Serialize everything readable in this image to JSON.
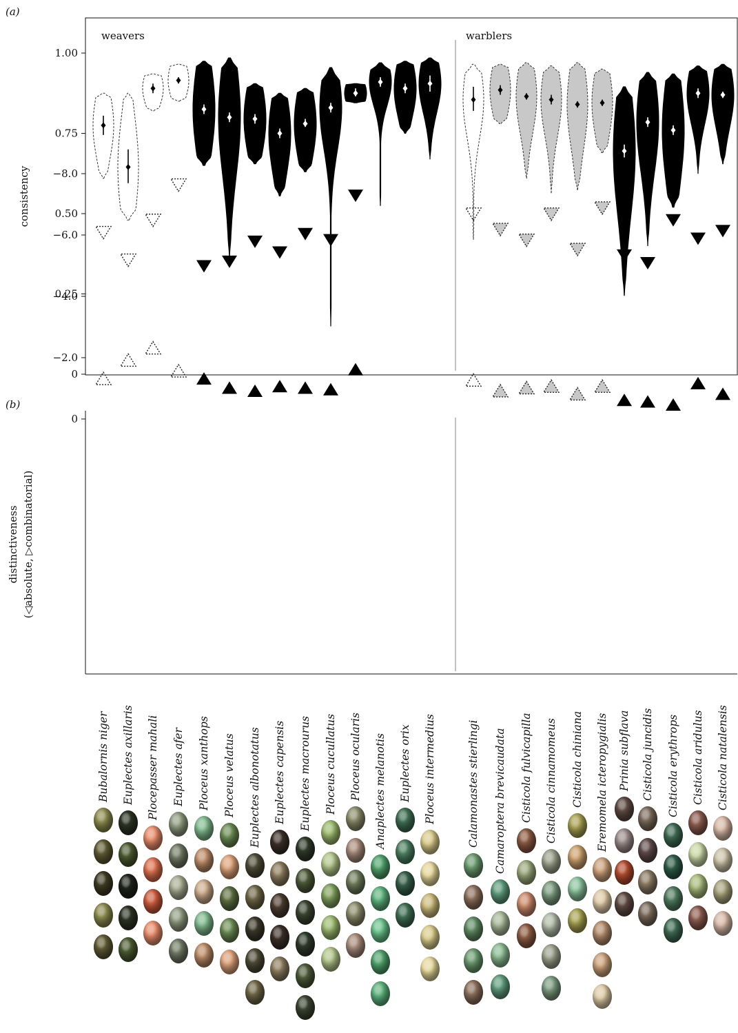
{
  "chart_data": [
    {
      "panel": "(a)",
      "type": "violin",
      "ylabel": "consistency",
      "ylim": [
        0,
        1.1
      ],
      "yticks": [
        "0",
        "0.25",
        "0.50",
        "0.75",
        "1.00"
      ],
      "groups": [
        "weavers",
        "warblers"
      ],
      "series": [
        {
          "species": "Bubalornis niger",
          "group": "weavers",
          "style": "dashed",
          "mean": 0.775,
          "err": [
            0.745,
            0.805
          ],
          "range": [
            0.61,
            0.875
          ]
        },
        {
          "species": "Euplectes axillaris",
          "group": "weavers",
          "style": "dashed",
          "mean": 0.645,
          "err": [
            0.595,
            0.7
          ],
          "range": [
            0.48,
            0.875
          ]
        },
        {
          "species": "Plocepasser mahali",
          "group": "weavers",
          "style": "dashed",
          "mean": 0.89,
          "err": [
            0.875,
            0.905
          ],
          "range": [
            0.82,
            0.935
          ]
        },
        {
          "species": "Euplectes afer",
          "group": "weavers",
          "style": "dashed",
          "mean": 0.915,
          "err": [
            0.905,
            0.925
          ],
          "range": [
            0.85,
            0.965
          ]
        },
        {
          "species": "Ploceus xanthops",
          "group": "weavers",
          "style": "black",
          "mean": 0.825,
          "err": [
            0.81,
            0.84
          ],
          "range": [
            0.65,
            0.975
          ]
        },
        {
          "species": "Ploceus velatus",
          "group": "weavers",
          "style": "black",
          "mean": 0.8,
          "err": [
            0.785,
            0.815
          ],
          "range": [
            0.36,
            0.985
          ]
        },
        {
          "species": "Euplectes albonotatus",
          "group": "weavers",
          "style": "black",
          "mean": 0.795,
          "err": [
            0.78,
            0.81
          ],
          "range": [
            0.655,
            0.905
          ]
        },
        {
          "species": "Euplectes capensis",
          "group": "weavers",
          "style": "black",
          "mean": 0.75,
          "err": [
            0.735,
            0.765
          ],
          "range": [
            0.555,
            0.875
          ]
        },
        {
          "species": "Euplectes macrourus",
          "group": "weavers",
          "style": "black",
          "mean": 0.78,
          "err": [
            0.77,
            0.795
          ],
          "range": [
            0.63,
            0.89
          ]
        },
        {
          "species": "Ploceus cucullatus",
          "group": "weavers",
          "style": "black",
          "mean": 0.83,
          "err": [
            0.815,
            0.845
          ],
          "range": [
            0.15,
            0.955
          ]
        },
        {
          "species": "Ploceus ocularis",
          "group": "weavers",
          "style": "black",
          "mean": 0.875,
          "err": [
            0.865,
            0.89
          ],
          "range": [
            0.845,
            0.905
          ]
        },
        {
          "species": "Anaplectes melanotis",
          "group": "weavers",
          "style": "black",
          "mean": 0.91,
          "err": [
            0.895,
            0.925
          ],
          "range": [
            0.525,
            0.97
          ]
        },
        {
          "species": "Euplectes orix",
          "group": "weavers",
          "style": "black",
          "mean": 0.89,
          "err": [
            0.875,
            0.905
          ],
          "range": [
            0.75,
            0.975
          ]
        },
        {
          "species": "Ploceus intermedius",
          "group": "weavers",
          "style": "black",
          "mean": 0.905,
          "err": [
            0.88,
            0.93
          ],
          "range": [
            0.67,
            0.985
          ]
        },
        {
          "species": "Calamonastes stierlingi",
          "group": "warblers",
          "style": "dashed",
          "mean": 0.855,
          "err": [
            0.82,
            0.895
          ],
          "range": [
            0.42,
            0.965
          ]
        },
        {
          "species": "Camaroptera brevicaudata",
          "group": "warblers",
          "style": "grey",
          "mean": 0.885,
          "err": [
            0.87,
            0.9
          ],
          "range": [
            0.78,
            0.965
          ]
        },
        {
          "species": "Cisticola fulvicapilla",
          "group": "warblers",
          "style": "grey",
          "mean": 0.865,
          "err": [
            0.855,
            0.875
          ],
          "range": [
            0.61,
            0.97
          ]
        },
        {
          "species": "Cisticola cinnamomeus",
          "group": "warblers",
          "style": "grey",
          "mean": 0.855,
          "err": [
            0.84,
            0.87
          ],
          "range": [
            0.565,
            0.96
          ]
        },
        {
          "species": "Cisticola chiniana",
          "group": "warblers",
          "style": "grey",
          "mean": 0.84,
          "err": [
            0.83,
            0.85
          ],
          "range": [
            0.575,
            0.97
          ]
        },
        {
          "species": "Eremomela icteropygialis",
          "group": "warblers",
          "style": "grey",
          "mean": 0.845,
          "err": [
            0.835,
            0.855
          ],
          "range": [
            0.69,
            0.95
          ]
        },
        {
          "species": "Prinia subflava",
          "group": "warblers",
          "style": "black",
          "mean": 0.695,
          "err": [
            0.675,
            0.715
          ],
          "range": [
            0.245,
            0.895
          ]
        },
        {
          "species": "Cisticola juncidis",
          "group": "warblers",
          "style": "black",
          "mean": 0.785,
          "err": [
            0.77,
            0.8
          ],
          "range": [
            0.4,
            0.94
          ]
        },
        {
          "species": "Cisticola erythrops",
          "group": "warblers",
          "style": "black",
          "mean": 0.76,
          "err": [
            0.745,
            0.775
          ],
          "range": [
            0.52,
            0.935
          ]
        },
        {
          "species": "Cisticola aridulus",
          "group": "warblers",
          "style": "black",
          "mean": 0.875,
          "err": [
            0.86,
            0.89
          ],
          "range": [
            0.625,
            0.96
          ]
        },
        {
          "species": "Cisticola natalensis",
          "group": "warblers",
          "style": "black",
          "mean": 0.87,
          "err": [
            0.86,
            0.88
          ],
          "range": [
            0.655,
            0.965
          ]
        }
      ]
    },
    {
      "panel": "(b)",
      "type": "scatter",
      "ylabel": "distinctiveness",
      "ylabel2": "(◁absolute, ▷combinatorial)",
      "ylim": [
        -8.2,
        0.2
      ],
      "yticks": [
        "0",
        "−2.0",
        "−4.0",
        "−6.0",
        "−8.0"
      ],
      "series": [
        {
          "species": "Bubalornis niger",
          "style": "dashed",
          "combinatorial": -1.3,
          "absolute": -6.1
        },
        {
          "species": "Euplectes axillaris",
          "style": "dashed",
          "combinatorial": -1.9,
          "absolute": -5.2
        },
        {
          "species": "Plocepasser mahali",
          "style": "dashed",
          "combinatorial": -2.3,
          "absolute": -6.5
        },
        {
          "species": "Euplectes afer",
          "style": "dashed",
          "combinatorial": -1.55,
          "absolute": -7.65
        },
        {
          "species": "Ploceus xanthops",
          "style": "black",
          "combinatorial": -1.3,
          "absolute": -5.0
        },
        {
          "species": "Ploceus velatus",
          "style": "black",
          "combinatorial": -1.0,
          "absolute": -5.15
        },
        {
          "species": "Euplectes albonotatus",
          "style": "black",
          "combinatorial": -0.9,
          "absolute": -5.8
        },
        {
          "species": "Euplectes capensis",
          "style": "black",
          "combinatorial": -1.05,
          "absolute": -5.45
        },
        {
          "species": "Euplectes macrourus",
          "style": "black",
          "combinatorial": -1.0,
          "absolute": -6.05
        },
        {
          "species": "Ploceus cucullatus",
          "style": "black",
          "combinatorial": -0.95,
          "absolute": -5.85
        },
        {
          "species": "Ploceus ocularis",
          "style": "black",
          "combinatorial": -1.6,
          "absolute": -7.3
        },
        {
          "species": "Calamonastes stierlingi",
          "style": "dashed",
          "combinatorial": -1.25,
          "absolute": -6.7
        },
        {
          "species": "Camaroptera brevicaudata",
          "style": "grey",
          "combinatorial": -0.9,
          "absolute": -6.2
        },
        {
          "species": "Cisticola fulvicapilla",
          "style": "grey",
          "combinatorial": -1.0,
          "absolute": -5.85
        },
        {
          "species": "Cisticola cinnamomeus",
          "style": "grey",
          "combinatorial": -1.05,
          "absolute": -6.7
        },
        {
          "species": "Cisticola chiniana",
          "style": "grey",
          "combinatorial": -0.8,
          "absolute": -5.55
        },
        {
          "species": "Eremomela icteropygialis",
          "style": "grey",
          "combinatorial": -1.05,
          "absolute": -6.9
        },
        {
          "species": "Prinia subflava",
          "style": "black",
          "combinatorial": -0.6,
          "absolute": -5.35
        },
        {
          "species": "Cisticola juncidis",
          "style": "black",
          "combinatorial": -0.55,
          "absolute": -5.1
        },
        {
          "species": "Cisticola erythrops",
          "style": "black",
          "combinatorial": -0.45,
          "absolute": -6.5
        },
        {
          "species": "Cisticola aridulus",
          "style": "black",
          "combinatorial": -1.15,
          "absolute": -5.9
        },
        {
          "species": "Cisticola natalensis",
          "style": "black",
          "combinatorial": -0.8,
          "absolute": -6.15
        }
      ]
    }
  ],
  "species_labels": [
    "Bubalornis niger",
    "Euplectes axillaris",
    "Plocepasser mahali",
    "Euplectes afer",
    "Ploceus xanthops",
    "Ploceus velatus",
    "Euplectes albonotatus",
    "Euplectes capensis",
    "Euplectes macrourus",
    "Ploceus cucullatus",
    "Ploceus ocularis",
    "Anaplectes melanotis",
    "Euplectes orix",
    "Ploceus intermedius",
    "Calamonastes stierlingi",
    "Camaroptera brevicaudata",
    "Cisticola fulvicapilla",
    "Cisticola cinnamomeus",
    "Cisticola chiniana",
    "Eremomela icteropygialis",
    "Prinia subflava",
    "Cisticola juncidis",
    "Cisticola erythrops",
    "Cisticola aridulus",
    "Cisticola natalensis"
  ],
  "egg_images": {
    "count_per_species": [
      5,
      5,
      4,
      5,
      5,
      5,
      6,
      5,
      6,
      5,
      5,
      5,
      4,
      5,
      5,
      5,
      4,
      5,
      4,
      5,
      4,
      4,
      4,
      4,
      4
    ],
    "palettes": [
      [
        "#8a8a4e",
        "#5e5a32",
        "#3d3a22"
      ],
      [
        "#2c3322",
        "#4a5a30",
        "#1e231a"
      ],
      [
        "#e58c6b",
        "#d96f4e",
        "#c95a3c"
      ],
      [
        "#8f9a80",
        "#6f7862",
        "#a6aa90"
      ],
      [
        "#7fb88d",
        "#b98a66",
        "#c9a98a"
      ],
      [
        "#6a8a52",
        "#d9a078",
        "#5c6e40"
      ],
      [
        "#4d4a35",
        "#6e6646",
        "#3a3828"
      ],
      [
        "#3a2e26",
        "#8a7a5c",
        "#4a3a2e"
      ],
      [
        "#2e3a2a",
        "#4c5a38",
        "#3a4430"
      ],
      [
        "#9ab86e",
        "#b0c48a",
        "#7f9e5c"
      ],
      [
        "#8a8a6a",
        "#a68a7a",
        "#6e7a5a"
      ],
      [
        "#4fa06a",
        "#5cb07a",
        "#6ac08a"
      ],
      [
        "#3e6e52",
        "#4a7e5e",
        "#365e48"
      ],
      [
        "#d6c98a",
        "#e3d69a",
        "#c9b87a"
      ],
      [
        "#6a9a6e",
        "#8a6e5a",
        "#5e8a62"
      ],
      [
        "#5e9a7a",
        "#a6b898",
        "#8ab890"
      ],
      [
        "#8a5a42",
        "#9aa67a",
        "#c98a6a"
      ],
      [
        "#9aa08a",
        "#7a9a7e",
        "#b0b8a6"
      ],
      [
        "#a6a052",
        "#c9a06e",
        "#8ac09a"
      ],
      [
        "#c9a07a",
        "#dcc9a6",
        "#b08a6a"
      ],
      [
        "#5e4a42",
        "#9a8a8a",
        "#b04a2e"
      ],
      [
        "#7a6a5a",
        "#5e4a4a",
        "#8a7a62"
      ],
      [
        "#3e6a52",
        "#2e5a46",
        "#4e7a5e"
      ],
      [
        "#8a5a4e",
        "#c9d6a6",
        "#a6b87a"
      ],
      [
        "#d6b8a6",
        "#c9c0a6",
        "#a6a07a"
      ]
    ]
  },
  "colors": {
    "black": "#000000",
    "grey": "#c8c8c8",
    "axis": "#111111",
    "divider": "#a0a0a0"
  }
}
